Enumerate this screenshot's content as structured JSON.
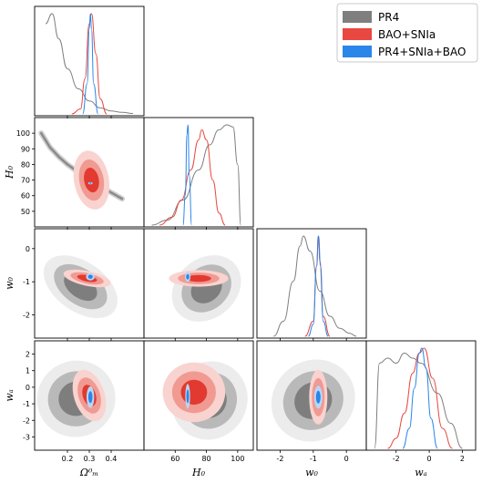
{
  "colors": {
    "pr4": "#7f7f7f",
    "bao_snia": "#e8483f",
    "combined": "#2a86e8"
  },
  "legend": {
    "placement": "top-right",
    "items": [
      {
        "label": "PR4",
        "color": "#7f7f7f"
      },
      {
        "label": "BAO+SNIa",
        "color": "#e8483f"
      },
      {
        "label": "PR4+SNIa+BAO",
        "color": "#2a86e8"
      }
    ]
  },
  "chart_data": {
    "type": "triangle",
    "parameters": [
      {
        "key": "om",
        "label": "Ω⁰ₘ",
        "range": [
          0.05,
          0.55
        ],
        "ticks": [
          "0.2",
          "0.3",
          "0.4"
        ],
        "tick_values": [
          0.2,
          0.3,
          0.4
        ]
      },
      {
        "key": "h0",
        "label": "H₀",
        "range": [
          40,
          110
        ],
        "ticks": [
          "60",
          "80",
          "100"
        ],
        "tick_values": [
          60,
          80,
          100
        ],
        "yticks": [
          "50",
          "60",
          "70",
          "80",
          "90",
          "100"
        ],
        "ytick_values": [
          50,
          60,
          70,
          80,
          90,
          100
        ]
      },
      {
        "key": "w0",
        "label": "w₀",
        "range": [
          -2.7,
          0.6
        ],
        "ticks": [
          "-2",
          "-1",
          "0"
        ],
        "tick_values": [
          -2,
          -1,
          0
        ]
      },
      {
        "key": "wa",
        "label": "wₐ",
        "range": [
          -3.8,
          2.8
        ],
        "ticks": [
          "-2",
          "0",
          "2"
        ],
        "tick_values": [
          -2,
          0,
          2
        ],
        "yticks": [
          "-3",
          "-2",
          "-1",
          "0",
          "1",
          "2"
        ],
        "ytick_values": [
          -3,
          -2,
          -1,
          0,
          1,
          2
        ]
      }
    ],
    "marginals": [
      {
        "param": "om",
        "series": [
          {
            "name": "PR4",
            "x": [
              0.1,
              0.13,
              0.16,
              0.2,
              0.25,
              0.3,
              0.35,
              0.4,
              0.45,
              0.5
            ],
            "y": [
              0.9,
              1.0,
              0.75,
              0.45,
              0.25,
              0.13,
              0.06,
              0.03,
              0.015,
              0.005
            ]
          },
          {
            "name": "BAO+SNIa",
            "x": [
              0.22,
              0.26,
              0.28,
              0.3,
              0.31,
              0.33,
              0.35,
              0.38
            ],
            "y": [
              0.0,
              0.05,
              0.35,
              0.9,
              1.0,
              0.6,
              0.15,
              0.0
            ]
          },
          {
            "name": "PR4+SNIa+BAO",
            "x": [
              0.27,
              0.29,
              0.3,
              0.305,
              0.31,
              0.32,
              0.34
            ],
            "y": [
              0.0,
              0.3,
              0.85,
              1.0,
              0.85,
              0.3,
              0.0
            ]
          }
        ]
      },
      {
        "param": "h0",
        "series": [
          {
            "name": "PR4",
            "x": [
              45,
              55,
              65,
              75,
              82,
              88,
              93,
              97,
              100,
              102
            ],
            "y": [
              0.0,
              0.05,
              0.25,
              0.55,
              0.8,
              0.95,
              1.0,
              0.98,
              0.6,
              0.0
            ]
          },
          {
            "name": "BAO+SNIa",
            "x": [
              50,
              58,
              64,
              70,
              75,
              77,
              80,
              84,
              88,
              92
            ],
            "y": [
              0.0,
              0.08,
              0.25,
              0.55,
              0.85,
              0.95,
              0.85,
              0.45,
              0.12,
              0.0
            ]
          },
          {
            "name": "PR4+SNIa+BAO",
            "x": [
              65,
              66.5,
              67.5,
              68.2,
              69,
              70.5
            ],
            "y": [
              0.0,
              0.3,
              0.9,
              1.0,
              0.5,
              0.0
            ]
          }
        ]
      },
      {
        "param": "w0",
        "series": [
          {
            "name": "PR4",
            "x": [
              -2.2,
              -1.9,
              -1.6,
              -1.4,
              -1.3,
              -1.1,
              -0.8,
              -0.5,
              -0.2,
              0.1,
              0.3
            ],
            "y": [
              0.0,
              0.15,
              0.55,
              0.9,
              1.0,
              0.85,
              0.45,
              0.2,
              0.08,
              0.03,
              0.0
            ]
          },
          {
            "name": "BAO+SNIa",
            "x": [
              -1.25,
              -1.0,
              -0.9,
              -0.85,
              -0.8,
              -0.7,
              -0.5
            ],
            "y": [
              0.0,
              0.15,
              0.7,
              1.0,
              0.75,
              0.2,
              0.0
            ]
          },
          {
            "name": "PR4+SNIa+BAO",
            "x": [
              -1.15,
              -1.0,
              -0.9,
              -0.84,
              -0.78,
              -0.7,
              -0.55
            ],
            "y": [
              0.0,
              0.12,
              0.7,
              1.0,
              0.7,
              0.15,
              0.0
            ]
          }
        ]
      },
      {
        "param": "wa",
        "series": [
          {
            "name": "PR4",
            "x": [
              -3.3,
              -3.0,
              -2.5,
              -2.0,
              -1.5,
              -1.0,
              -0.5,
              0.5,
              1.3,
              2.0
            ],
            "y": [
              0.0,
              0.85,
              0.9,
              0.85,
              0.95,
              0.9,
              0.85,
              0.55,
              0.25,
              0.0
            ]
          },
          {
            "name": "BAO+SNIa",
            "x": [
              -2.5,
              -2.0,
              -1.5,
              -1.0,
              -0.6,
              -0.3,
              0.2,
              0.8,
              1.4
            ],
            "y": [
              0.0,
              0.1,
              0.35,
              0.75,
              0.95,
              1.0,
              0.7,
              0.2,
              0.0
            ]
          },
          {
            "name": "PR4+SNIa+BAO",
            "x": [
              -1.6,
              -1.2,
              -0.9,
              -0.6,
              -0.45,
              -0.2,
              0.1,
              0.5
            ],
            "y": [
              0.0,
              0.2,
              0.6,
              0.95,
              1.0,
              0.8,
              0.3,
              0.0
            ]
          }
        ]
      }
    ],
    "contours_2d": [
      {
        "x": "om",
        "y": "h0",
        "pr4": {
          "type": "band",
          "points": [
            [
              0.08,
              100
            ],
            [
              0.12,
              91
            ],
            [
              0.16,
              85
            ],
            [
              0.2,
              80
            ],
            [
              0.25,
              75
            ],
            [
              0.3,
              70
            ],
            [
              0.35,
              66
            ],
            [
              0.4,
              62
            ],
            [
              0.45,
              58
            ]
          ]
        },
        "bao_snia": {
          "center": [
            0.31,
            70
          ],
          "width": [
            0.16,
            38
          ],
          "angle": -10
        },
        "combined": {
          "center": [
            0.305,
            68
          ],
          "width": [
            0.02,
            1.5
          ],
          "angle": 0
        }
      },
      {
        "x": "om",
        "y": "w0",
        "pr4": {
          "center": [
            0.26,
            -1.15
          ],
          "width": [
            0.38,
            1.5
          ],
          "angle": 35
        },
        "bao_snia": {
          "center": [
            0.29,
            -0.9
          ],
          "width": [
            0.22,
            0.45
          ],
          "angle": 12
        },
        "combined": {
          "center": [
            0.305,
            -0.85
          ],
          "width": [
            0.04,
            0.22
          ],
          "angle": 0
        }
      },
      {
        "x": "om",
        "y": "wa",
        "pr4": {
          "center": [
            0.24,
            -0.7
          ],
          "width": [
            0.36,
            4.6
          ],
          "angle": -20
        },
        "bao_snia": {
          "center": [
            0.3,
            -0.5
          ],
          "width": [
            0.14,
            3.2
          ],
          "angle": -18
        },
        "combined": {
          "center": [
            0.305,
            -0.6
          ],
          "width": [
            0.035,
            1.3
          ],
          "angle": 0
        }
      },
      {
        "x": "h0",
        "y": "w0",
        "pr4": {
          "center": [
            80,
            -1.2
          ],
          "width": [
            48,
            1.8
          ],
          "angle": -40
        },
        "bao_snia": {
          "center": [
            75,
            -0.9
          ],
          "width": [
            38,
            0.5
          ],
          "angle": 0
        },
        "combined": {
          "center": [
            68,
            -0.85
          ],
          "width": [
            3.5,
            0.3
          ],
          "angle": 0
        }
      },
      {
        "x": "h0",
        "y": "wa",
        "pr4": {
          "center": [
            82,
            -0.8
          ],
          "width": [
            48,
            4.8
          ],
          "angle": 30
        },
        "bao_snia": {
          "center": [
            72,
            -0.3
          ],
          "width": [
            40,
            3.6
          ],
          "angle": 0
        },
        "combined": {
          "center": [
            68,
            -0.55
          ],
          "width": [
            3.0,
            1.5
          ],
          "angle": 0
        }
      },
      {
        "x": "w0",
        "y": "wa",
        "pr4": {
          "center": [
            -1.0,
            -0.8
          ],
          "width": [
            2.6,
            4.8
          ],
          "angle": -38
        },
        "bao_snia": {
          "center": [
            -0.85,
            -0.6
          ],
          "width": [
            0.55,
            3.3
          ],
          "angle": 0
        },
        "combined": {
          "center": [
            -0.85,
            -0.6
          ],
          "width": [
            0.25,
            1.4
          ],
          "angle": 0
        }
      }
    ]
  }
}
